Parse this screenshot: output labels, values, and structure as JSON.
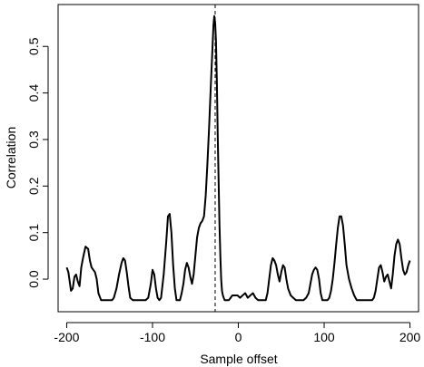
{
  "chart_data": {
    "type": "line",
    "xlabel": "Sample offset",
    "ylabel": "Correlation",
    "xlim": [
      -210,
      210
    ],
    "ylim": [
      -0.07,
      0.59
    ],
    "xticks": [
      {
        "value": -200,
        "label": "-200"
      },
      {
        "value": -100,
        "label": "-100"
      },
      {
        "value": 0,
        "label": "0"
      },
      {
        "value": 100,
        "label": "100"
      },
      {
        "value": 200,
        "label": "200"
      }
    ],
    "yticks": [
      {
        "value": 0.0,
        "label": "0.0"
      },
      {
        "value": 0.1,
        "label": "0.1"
      },
      {
        "value": 0.2,
        "label": "0.2"
      },
      {
        "value": 0.3,
        "label": "0.3"
      },
      {
        "value": 0.4,
        "label": "0.4"
      },
      {
        "value": 0.5,
        "label": "0.5"
      }
    ],
    "vline": {
      "x": -27,
      "style": "dashed"
    },
    "grid": false,
    "legend": "none",
    "line_color": "#000000",
    "series": [
      {
        "x": [
          -200,
          -198,
          -195,
          -193,
          -191,
          -189,
          -187,
          -185,
          -183,
          -181,
          -178,
          -175,
          -173,
          -171,
          -169,
          -167,
          -165,
          -163,
          -160,
          -157,
          -154,
          -150,
          -147,
          -145,
          -142,
          -139,
          -136,
          -134,
          -132,
          -130,
          -128,
          -126,
          -123,
          -120,
          -117,
          -114,
          -111,
          -108,
          -105,
          -102,
          -100,
          -98,
          -96,
          -94,
          -92,
          -90,
          -87,
          -84,
          -82,
          -80,
          -78,
          -76,
          -74,
          -72,
          -70,
          -68,
          -66,
          -64,
          -62,
          -60,
          -58,
          -56,
          -54,
          -52,
          -50,
          -48,
          -46,
          -44,
          -42,
          -40,
          -38,
          -36,
          -34,
          -32,
          -30,
          -29,
          -28,
          -27,
          -26,
          -25,
          -24,
          -23,
          -22,
          -21,
          -20,
          -19,
          -18,
          -17,
          -16,
          -15,
          -14,
          -13,
          -11,
          -9,
          -7,
          -4,
          -1,
          2,
          5,
          8,
          11,
          14,
          17,
          20,
          23,
          26,
          29,
          32,
          34,
          36,
          38,
          40,
          42,
          44,
          46,
          48,
          50,
          52,
          54,
          56,
          58,
          61,
          64,
          67,
          70,
          73,
          76,
          79,
          82,
          84,
          86,
          88,
          90,
          92,
          94,
          96,
          98,
          100,
          102,
          104,
          106,
          108,
          110,
          112,
          114,
          116,
          118,
          120,
          122,
          124,
          126,
          129,
          132,
          135,
          138,
          141,
          144,
          147,
          150,
          152,
          154,
          156,
          158,
          160,
          162,
          164,
          166,
          168,
          170,
          172,
          174,
          176,
          178,
          180,
          182,
          184,
          186,
          188,
          190,
          192,
          194,
          196,
          198,
          200
        ],
        "y": [
          0.025,
          0.015,
          -0.025,
          -0.02,
          0.005,
          0.01,
          -0.005,
          -0.015,
          0.025,
          0.045,
          0.07,
          0.065,
          0.04,
          0.025,
          0.02,
          0.015,
          0.0,
          -0.03,
          -0.045,
          -0.045,
          -0.045,
          -0.045,
          -0.045,
          -0.04,
          -0.02,
          0.01,
          0.035,
          0.045,
          0.04,
          0.015,
          -0.015,
          -0.04,
          -0.045,
          -0.045,
          -0.045,
          -0.045,
          -0.045,
          -0.045,
          -0.04,
          -0.01,
          0.02,
          0.01,
          -0.02,
          -0.04,
          -0.045,
          -0.04,
          0.01,
          0.08,
          0.135,
          0.14,
          0.1,
          0.03,
          -0.02,
          -0.045,
          -0.045,
          -0.045,
          -0.03,
          -0.01,
          0.02,
          0.035,
          0.025,
          0.005,
          -0.01,
          0.01,
          0.05,
          0.09,
          0.11,
          0.12,
          0.125,
          0.135,
          0.18,
          0.25,
          0.33,
          0.42,
          0.5,
          0.545,
          0.565,
          0.55,
          0.51,
          0.42,
          0.31,
          0.21,
          0.12,
          0.05,
          0.0,
          -0.025,
          -0.035,
          -0.04,
          -0.045,
          -0.045,
          -0.045,
          -0.045,
          -0.045,
          -0.04,
          -0.035,
          -0.035,
          -0.035,
          -0.04,
          -0.035,
          -0.03,
          -0.04,
          -0.035,
          -0.03,
          -0.04,
          -0.045,
          -0.045,
          -0.045,
          -0.045,
          -0.03,
          0.0,
          0.03,
          0.045,
          0.04,
          0.03,
          0.01,
          -0.005,
          0.015,
          0.03,
          0.025,
          0.0,
          -0.02,
          -0.035,
          -0.04,
          -0.045,
          -0.045,
          -0.045,
          -0.045,
          -0.04,
          -0.03,
          -0.01,
          0.01,
          0.02,
          0.025,
          0.02,
          0.0,
          -0.03,
          -0.045,
          -0.045,
          -0.045,
          -0.045,
          -0.04,
          -0.025,
          0.0,
          0.035,
          0.075,
          0.11,
          0.135,
          0.135,
          0.115,
          0.075,
          0.03,
          0.0,
          -0.02,
          -0.035,
          -0.045,
          -0.045,
          -0.045,
          -0.045,
          -0.045,
          -0.045,
          -0.045,
          -0.045,
          -0.04,
          -0.025,
          0.0,
          0.025,
          0.03,
          0.015,
          -0.005,
          0.005,
          0.01,
          -0.005,
          -0.02,
          0.01,
          0.05,
          0.075,
          0.085,
          0.075,
          0.045,
          0.02,
          0.01,
          0.015,
          0.03,
          0.04
        ]
      }
    ]
  }
}
